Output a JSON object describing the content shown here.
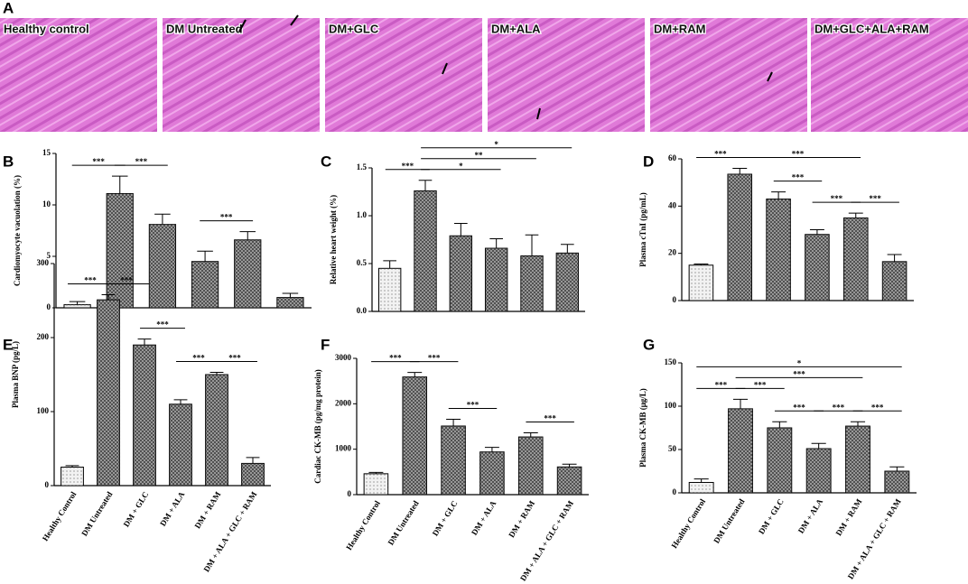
{
  "histology": {
    "panel": "A",
    "images": [
      "Healthy control",
      "DM Untreated",
      "DM+GLC",
      "DM+ALA",
      "DM+RAM",
      "DM+GLC+ALA+RAM"
    ]
  },
  "chart_data": [
    {
      "type": "bar",
      "panel": "B",
      "ylabel": "Cardiomyocyte vacuolation (%)",
      "categories": [
        null,
        null,
        null,
        null,
        null,
        null
      ],
      "values": [
        0.3,
        11.1,
        8.1,
        4.5,
        6.6,
        1.0
      ],
      "errors": [
        0.3,
        1.7,
        1.0,
        1.0,
        0.8,
        0.4
      ],
      "colors": [
        "#f2f2f2",
        "#a6a6a6",
        "#a6a6a6",
        "#a6a6a6",
        "#a6a6a6",
        "#a6a6a6"
      ],
      "ylim": [
        0,
        15
      ],
      "yticks": [
        0,
        5,
        10,
        15
      ],
      "significance": [
        {
          "from": 0,
          "to": 1,
          "label": "***"
        },
        {
          "from": 1,
          "to": 2,
          "label": "***"
        },
        {
          "from": 3,
          "to": 4,
          "label": "***"
        }
      ]
    },
    {
      "type": "bar",
      "panel": "C",
      "ylabel": "Relative heart weight (%)",
      "categories": [
        null,
        null,
        null,
        null,
        null,
        null
      ],
      "values": [
        0.45,
        1.26,
        0.79,
        0.66,
        0.58,
        0.61
      ],
      "errors": [
        0.08,
        0.11,
        0.13,
        0.1,
        0.22,
        0.09
      ],
      "colors": [
        "#f2f2f2",
        "#a6a6a6",
        "#a6a6a6",
        "#a6a6a6",
        "#a6a6a6",
        "#a6a6a6"
      ],
      "ylim": [
        0,
        1.5
      ],
      "yticks": [
        {
          "value": 0,
          "label": "0.0"
        },
        0.5,
        {
          "value": 1,
          "label": "1.0"
        },
        1.5
      ],
      "significance": [
        {
          "from": 0,
          "to": 1,
          "label": "***"
        },
        {
          "from": 1,
          "to": 3,
          "label": "*"
        },
        {
          "from": 1,
          "to": 4,
          "label": "**"
        },
        {
          "from": 1,
          "to": 5,
          "label": "*"
        }
      ]
    },
    {
      "type": "bar",
      "panel": "D",
      "ylabel": "Plasma cTnI (pg/mL)",
      "categories": [
        null,
        null,
        null,
        null,
        null,
        null
      ],
      "values": [
        15,
        53.5,
        43,
        28,
        35,
        16.5
      ],
      "errors": [
        0.5,
        2.5,
        3,
        2,
        2,
        3
      ],
      "colors": [
        "#f2f2f2",
        "#a6a6a6",
        "#a6a6a6",
        "#a6a6a6",
        "#a6a6a6",
        "#a6a6a6"
      ],
      "ylim": [
        0,
        60
      ],
      "yticks": [
        0,
        20,
        40,
        60
      ],
      "significance": [
        {
          "from": 2,
          "to": 3,
          "label": "***"
        },
        {
          "from": 3,
          "to": 4,
          "label": "***"
        },
        {
          "from": 0,
          "to": 1,
          "label": "***"
        },
        {
          "from": 1,
          "to": 4,
          "label": "***"
        },
        {
          "from": 4,
          "to": 5,
          "label": "***"
        }
      ]
    },
    {
      "type": "bar",
      "panel": "E",
      "ylabel": "Plasma BNP (pg/L)",
      "categories": [
        "Healthy Control",
        "DM Untreated",
        "DM + GLC",
        "DM + ALA",
        "DM + RAM",
        "DM + ALA + GLC + RAM"
      ],
      "values": [
        25,
        251,
        190,
        110,
        150,
        30
      ],
      "errors": [
        2,
        7,
        8,
        6,
        3,
        8
      ],
      "colors": [
        "#f2f2f2",
        "#a6a6a6",
        "#a6a6a6",
        "#a6a6a6",
        "#a6a6a6",
        "#a6a6a6"
      ],
      "ylim": [
        0,
        300
      ],
      "yticks": [
        0,
        100,
        200,
        300
      ],
      "significance": [
        {
          "from": 0,
          "to": 1,
          "label": "***"
        },
        {
          "from": 1,
          "to": 2,
          "label": "***"
        },
        {
          "from": 2,
          "to": 3,
          "label": "***"
        },
        {
          "from": 3,
          "to": 4,
          "label": "***"
        },
        {
          "from": 4,
          "to": 5,
          "label": "***"
        }
      ]
    },
    {
      "type": "bar",
      "panel": "F",
      "ylabel": "Cardiac CK-MB (pg/mg protein)",
      "categories": [
        "Healthy Control",
        "DM Untreated",
        "DM + GLC",
        "DM + ALA",
        "DM + RAM",
        "DM + ALA + GLC + RAM"
      ],
      "values": [
        460,
        2590,
        1510,
        940,
        1270,
        610
      ],
      "errors": [
        30,
        100,
        150,
        100,
        90,
        60
      ],
      "colors": [
        "#f2f2f2",
        "#a6a6a6",
        "#a6a6a6",
        "#a6a6a6",
        "#a6a6a6",
        "#a6a6a6"
      ],
      "ylim": [
        0,
        3000
      ],
      "yticks": [
        0,
        1000,
        2000,
        3000
      ],
      "significance": [
        {
          "from": 0,
          "to": 1,
          "label": "***"
        },
        {
          "from": 1,
          "to": 2,
          "label": "***"
        },
        {
          "from": 2,
          "to": 3,
          "label": "***"
        },
        {
          "from": 4,
          "to": 5,
          "label": "***"
        }
      ]
    },
    {
      "type": "bar",
      "panel": "G",
      "ylabel": "Plasma CK-MB (μg/L)",
      "categories": [
        "Healthy Control",
        "DM Untreated",
        "DM + GLC",
        "DM + ALA",
        "DM + RAM",
        "DM + ALA + GLC + RAM"
      ],
      "values": [
        12,
        97,
        75,
        51,
        77,
        25
      ],
      "errors": [
        4,
        11,
        7,
        6,
        5,
        5
      ],
      "colors": [
        "#f2f2f2",
        "#a6a6a6",
        "#a6a6a6",
        "#a6a6a6",
        "#a6a6a6",
        "#a6a6a6"
      ],
      "ylim": [
        0,
        150
      ],
      "yticks": [
        0,
        50,
        100,
        150
      ],
      "significance": [
        {
          "from": 0,
          "to": 1,
          "label": "***"
        },
        {
          "from": 1,
          "to": 2,
          "label": "***"
        },
        {
          "from": 2,
          "to": 3,
          "label": "***"
        },
        {
          "from": 3,
          "to": 4,
          "label": "***"
        },
        {
          "from": 4,
          "to": 5,
          "label": "***"
        },
        {
          "from": 1,
          "to": 4,
          "label": "***"
        },
        {
          "from": 0,
          "to": 5,
          "label": "*"
        }
      ]
    }
  ]
}
